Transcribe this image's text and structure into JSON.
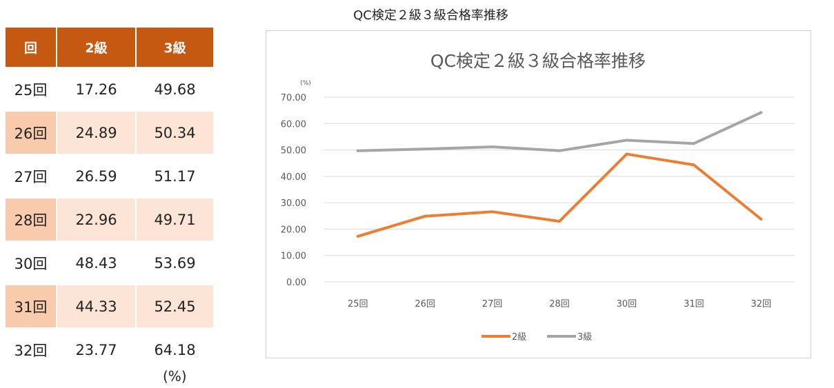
{
  "page_title": "QC検定２級３級合格率推移",
  "table": {
    "headers": [
      "回",
      "2級",
      "3級"
    ],
    "rows": [
      [
        "25回",
        "17.26",
        "49.68"
      ],
      [
        "26回",
        "24.89",
        "50.34"
      ],
      [
        "27回",
        "26.59",
        "51.17"
      ],
      [
        "28回",
        "22.96",
        "49.71"
      ],
      [
        "30回",
        "48.43",
        "53.69"
      ],
      [
        "31回",
        "44.33",
        "52.45"
      ],
      [
        "32回",
        "23.77",
        "64.18"
      ]
    ],
    "unit_note": "(%)"
  },
  "colors": {
    "header_bg": "#c65911",
    "row_alt": "#fce4d6",
    "row_alt_first": "#f8cbad",
    "series_2": "#ed7d31",
    "series_3": "#a5a5a5"
  },
  "chart_data": {
    "type": "line",
    "title": "QC検定２級３級合格率推移",
    "ylabel": "(%)",
    "categories": [
      "25回",
      "26回",
      "27回",
      "28回",
      "30回",
      "31回",
      "32回"
    ],
    "yticks": [
      "0.00",
      "10.00",
      "20.00",
      "30.00",
      "40.00",
      "50.00",
      "60.00",
      "70.00"
    ],
    "ylim": [
      0,
      70
    ],
    "grid": true,
    "legend_position": "bottom",
    "series": [
      {
        "name": "2級",
        "values": [
          17.26,
          24.89,
          26.59,
          22.96,
          48.43,
          44.33,
          23.77
        ]
      },
      {
        "name": "3級",
        "values": [
          49.68,
          50.34,
          51.17,
          49.71,
          53.69,
          52.45,
          64.18
        ]
      }
    ]
  }
}
